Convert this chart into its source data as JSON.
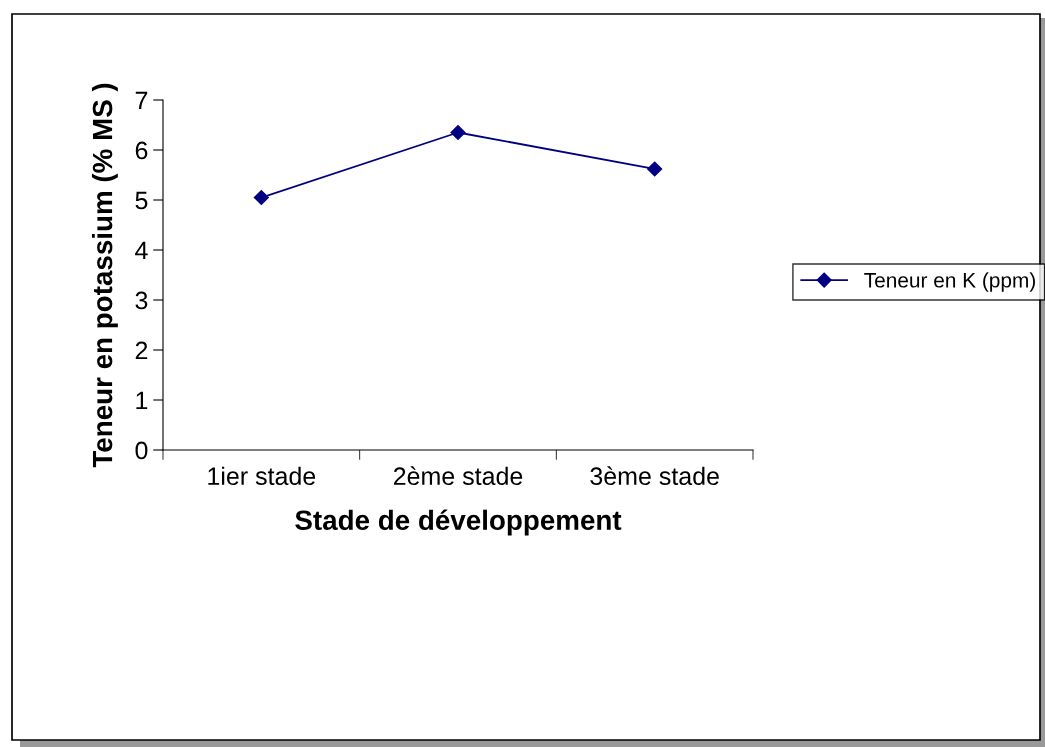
{
  "chart_data": {
    "type": "line",
    "xlabel": "Stade de développement",
    "ylabel": "Teneur en potassium (% MS )",
    "categories": [
      "1ier stade",
      "2ème stade",
      "3ème stade"
    ],
    "series": [
      {
        "name": "Teneur en K (ppm)",
        "color": "#000080",
        "values": [
          5.05,
          6.35,
          5.62
        ]
      }
    ],
    "ylim": [
      0,
      7
    ],
    "yticks": [
      0,
      1,
      2,
      3,
      4,
      5,
      6,
      7
    ],
    "grid": false,
    "legend": "right",
    "marker": "diamond",
    "line_style": "solid"
  }
}
